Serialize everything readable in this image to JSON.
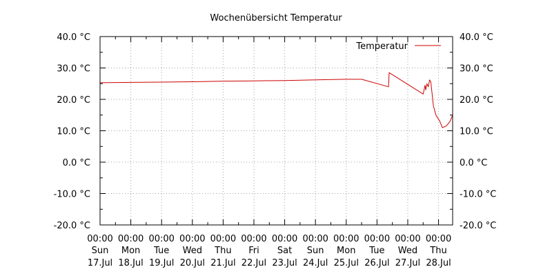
{
  "chart_data": {
    "type": "line",
    "title": "Wochenübersicht Temperatur",
    "xlabel": "",
    "ylabel": "",
    "ylim": [
      -20,
      40
    ],
    "y_ticks": [
      -20,
      -10,
      0,
      10,
      20,
      30,
      40
    ],
    "y_tick_labels": [
      "-20.0 °C",
      "-10.0 °C",
      "0.0 °C",
      "10.0 °C",
      "20.0 °C",
      "30.0 °C",
      "40.0 °C"
    ],
    "x_ticks": [
      {
        "time": "00:00",
        "day": "Sun",
        "date": "17.Jul"
      },
      {
        "time": "00:00",
        "day": "Mon",
        "date": "18.Jul"
      },
      {
        "time": "00:00",
        "day": "Tue",
        "date": "19.Jul"
      },
      {
        "time": "00:00",
        "day": "Wed",
        "date": "20.Jul"
      },
      {
        "time": "00:00",
        "day": "Thu",
        "date": "21.Jul"
      },
      {
        "time": "00:00",
        "day": "Fri",
        "date": "22.Jul"
      },
      {
        "time": "00:00",
        "day": "Sat",
        "date": "23.Jul"
      },
      {
        "time": "00:00",
        "day": "Sun",
        "date": "24.Jul"
      },
      {
        "time": "00:00",
        "day": "Mon",
        "date": "25.Jul"
      },
      {
        "time": "00:00",
        "day": "Tue",
        "date": "26.Jul"
      },
      {
        "time": "00:00",
        "day": "Wed",
        "date": "27.Jul"
      },
      {
        "time": "00:00",
        "day": "Thu",
        "date": "28.Jul"
      }
    ],
    "xlim": [
      "2016-07-17 00:00",
      "2016-07-28 11:00"
    ],
    "grid": true,
    "legend": "top-right",
    "series": [
      {
        "name": "Temperatur",
        "color": "#cc0000",
        "points": [
          {
            "x": "2016-07-17 00:00",
            "y": 25.3
          },
          {
            "x": "2016-07-18 00:00",
            "y": 25.4
          },
          {
            "x": "2016-07-19 00:00",
            "y": 25.5
          },
          {
            "x": "2016-07-20 00:00",
            "y": 25.6
          },
          {
            "x": "2016-07-21 00:00",
            "y": 25.8
          },
          {
            "x": "2016-07-22 00:00",
            "y": 25.9
          },
          {
            "x": "2016-07-23 00:00",
            "y": 26.0
          },
          {
            "x": "2016-07-24 00:00",
            "y": 26.2
          },
          {
            "x": "2016-07-25 00:00",
            "y": 26.4
          },
          {
            "x": "2016-07-25 12:00",
            "y": 26.4
          },
          {
            "x": "2016-07-26 09:00",
            "y": 24.0
          },
          {
            "x": "2016-07-26 09:30",
            "y": 28.5
          },
          {
            "x": "2016-07-27 12:00",
            "y": 21.7
          },
          {
            "x": "2016-07-27 13:30",
            "y": 24.5
          },
          {
            "x": "2016-07-27 14:00",
            "y": 23.0
          },
          {
            "x": "2016-07-27 15:00",
            "y": 25.0
          },
          {
            "x": "2016-07-27 16:00",
            "y": 24.0
          },
          {
            "x": "2016-07-27 17:00",
            "y": 26.2
          },
          {
            "x": "2016-07-27 18:00",
            "y": 25.5
          },
          {
            "x": "2016-07-27 20:00",
            "y": 18.0
          },
          {
            "x": "2016-07-27 22:00",
            "y": 15.0
          },
          {
            "x": "2016-07-28 01:00",
            "y": 13.0
          },
          {
            "x": "2016-07-28 03:00",
            "y": 11.0
          },
          {
            "x": "2016-07-28 06:00",
            "y": 11.5
          },
          {
            "x": "2016-07-28 09:00",
            "y": 13.0
          },
          {
            "x": "2016-07-28 11:00",
            "y": 15.0
          }
        ]
      }
    ]
  }
}
